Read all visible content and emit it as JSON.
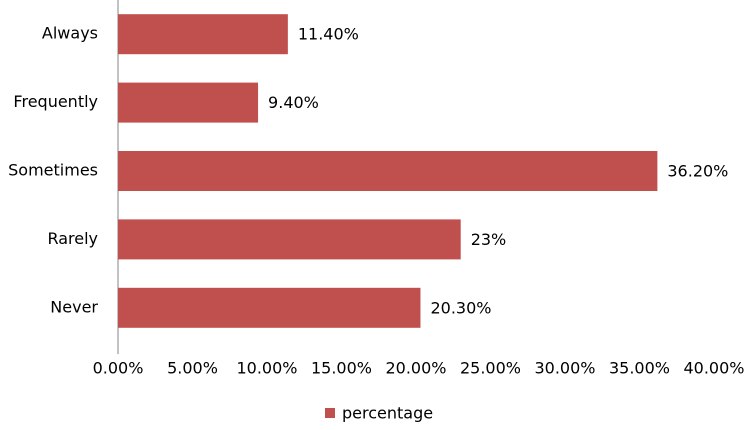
{
  "chart_data": {
    "type": "hbar",
    "categories": [
      "Always",
      "Frequently",
      "Sometimes",
      "Rarely",
      "Never"
    ],
    "series": [
      {
        "name": "percentage",
        "color": "#c0504d",
        "values": [
          11.4,
          9.4,
          36.2,
          23,
          20.3
        ],
        "value_labels": [
          "11.40%",
          "9.40%",
          "36.20%",
          "23%",
          "20.30%"
        ]
      }
    ],
    "xlim": [
      0,
      40
    ],
    "xticks": [
      {
        "value": 0,
        "label": "0.00%"
      },
      {
        "value": 5,
        "label": "5.00%"
      },
      {
        "value": 10,
        "label": "10.00%"
      },
      {
        "value": 15,
        "label": "15.00%"
      },
      {
        "value": 20,
        "label": "20.00%"
      },
      {
        "value": 25,
        "label": "25.00%"
      },
      {
        "value": 30,
        "label": "30.00%"
      },
      {
        "value": 35,
        "label": "35.00%"
      },
      {
        "value": 40,
        "label": "40.00%"
      }
    ],
    "grid": false,
    "legend": "bottom"
  }
}
